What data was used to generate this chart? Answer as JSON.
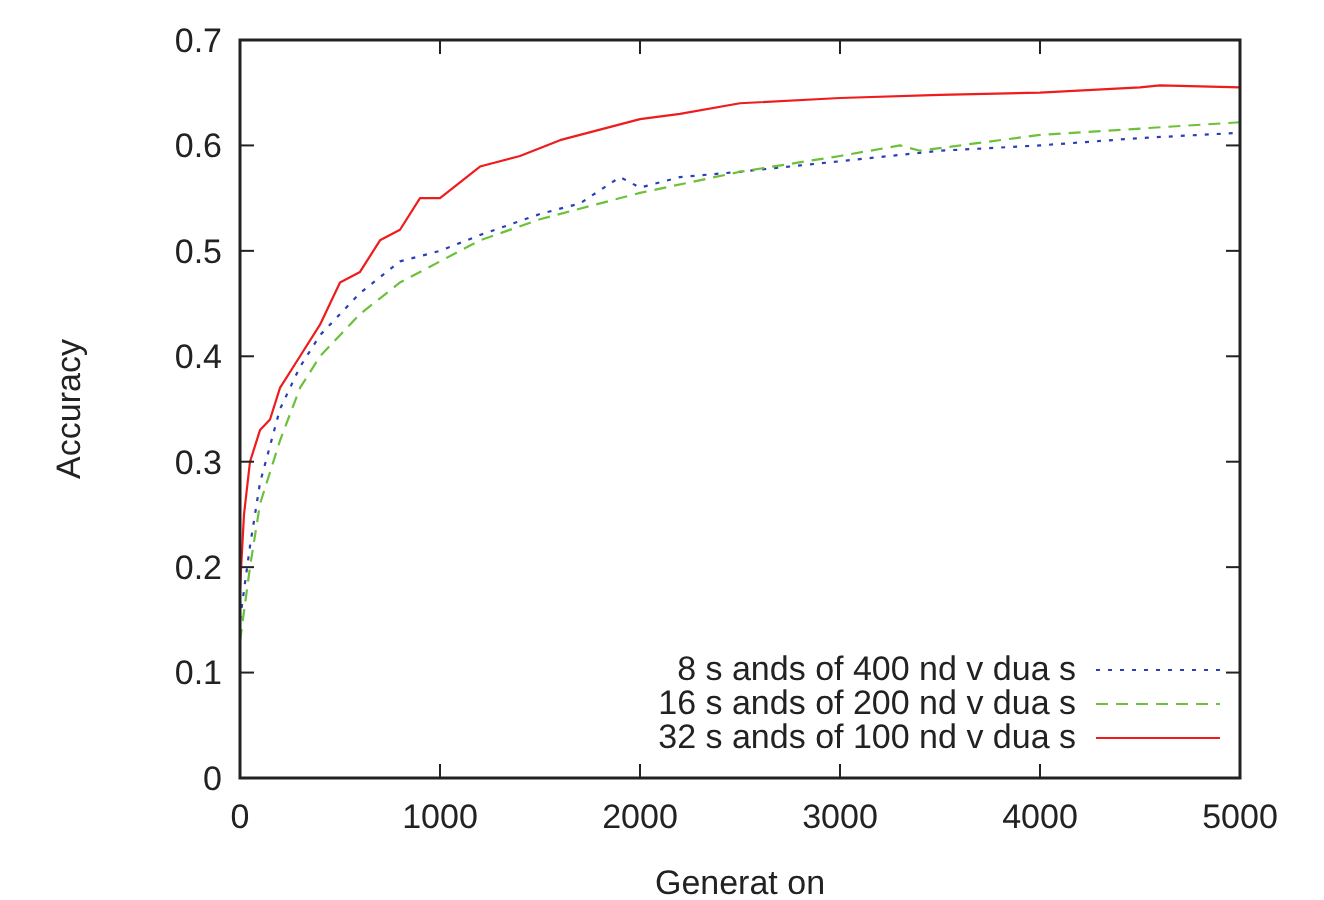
{
  "chart_data": {
    "type": "line",
    "xlabel": "Generat on",
    "ylabel": "Accuracy",
    "xlim": [
      0,
      5000
    ],
    "xticks": [
      0,
      1000,
      2000,
      3000,
      4000,
      5000
    ],
    "ylim": [
      0,
      0.7
    ],
    "yticks": [
      0,
      0.1,
      0.2,
      0.3,
      0.4,
      0.5,
      0.6,
      0.7
    ],
    "legend": "bottom right",
    "grid": false,
    "marker": "none",
    "series": [
      {
        "name": "8  s ands of 400  nd v dua s",
        "color": "#2a3fb5",
        "line_style": "dotted",
        "x": [
          0,
          50,
          100,
          200,
          300,
          400,
          500,
          600,
          700,
          800,
          1000,
          1200,
          1500,
          1700,
          1900,
          2000,
          2200,
          2500,
          3000,
          3500,
          4000,
          4500,
          5000
        ],
        "values": [
          0.15,
          0.22,
          0.28,
          0.35,
          0.39,
          0.42,
          0.44,
          0.46,
          0.475,
          0.49,
          0.5,
          0.515,
          0.535,
          0.545,
          0.57,
          0.56,
          0.57,
          0.575,
          0.585,
          0.595,
          0.6,
          0.607,
          0.612
        ]
      },
      {
        "name": "16  s ands of 200  nd v dua s",
        "color": "#6cc03a",
        "line_style": "dashed",
        "x": [
          0,
          50,
          100,
          200,
          300,
          400,
          500,
          600,
          700,
          800,
          1000,
          1200,
          1500,
          2000,
          2500,
          3000,
          3300,
          3400,
          4000,
          5000
        ],
        "values": [
          0.13,
          0.2,
          0.26,
          0.32,
          0.37,
          0.4,
          0.42,
          0.44,
          0.455,
          0.47,
          0.49,
          0.51,
          0.53,
          0.555,
          0.575,
          0.59,
          0.6,
          0.595,
          0.61,
          0.622
        ]
      },
      {
        "name": "32  s ands of 100  nd v dua s",
        "color": "#ee1c1c",
        "line_style": "solid",
        "x": [
          0,
          20,
          50,
          100,
          150,
          200,
          300,
          400,
          500,
          600,
          700,
          800,
          900,
          1000,
          1200,
          1400,
          1600,
          1800,
          2000,
          2200,
          2500,
          3000,
          3500,
          4000,
          4500,
          4600,
          5000
        ],
        "values": [
          0.18,
          0.25,
          0.3,
          0.33,
          0.34,
          0.37,
          0.4,
          0.43,
          0.47,
          0.48,
          0.51,
          0.52,
          0.55,
          0.55,
          0.58,
          0.59,
          0.605,
          0.615,
          0.625,
          0.63,
          0.64,
          0.645,
          0.648,
          0.65,
          0.655,
          0.657,
          0.655
        ]
      }
    ]
  }
}
